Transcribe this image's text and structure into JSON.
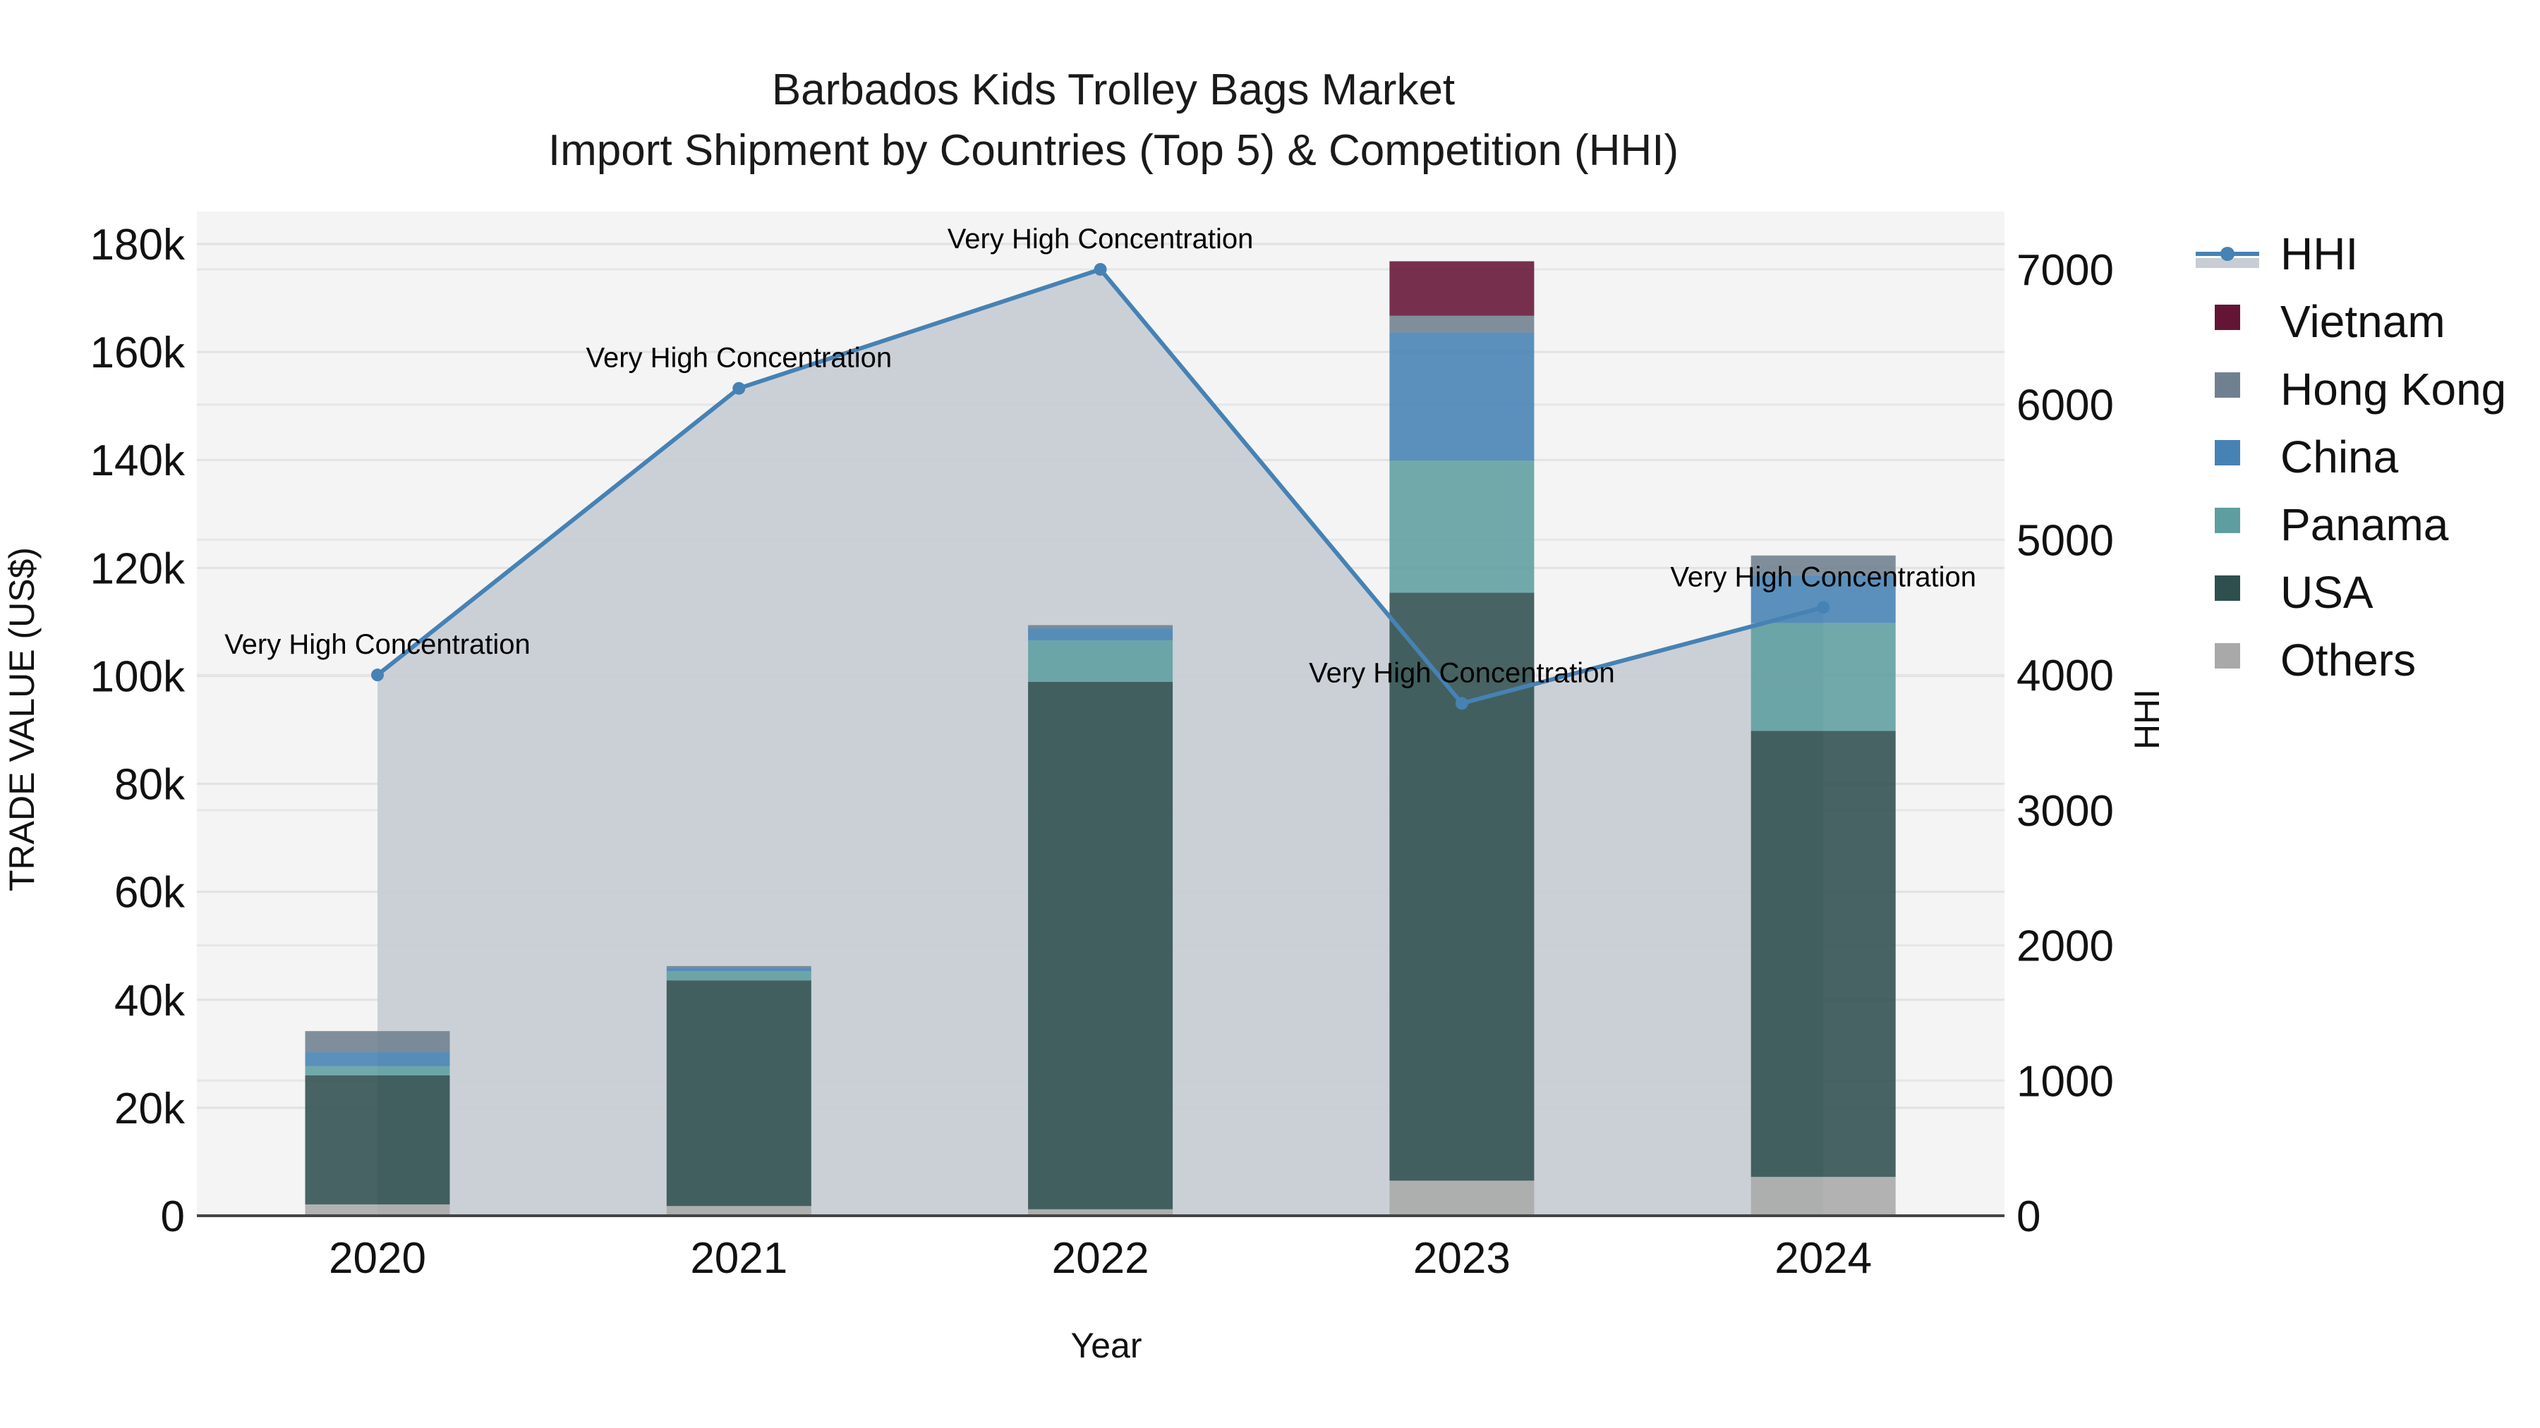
{
  "title": {
    "line1": "Barbados Kids Trolley Bags Market",
    "line2": "Import Shipment by Countries (Top 5) & Competition (HHI)"
  },
  "axes": {
    "x_title": "Year",
    "y_left_title": "TRADE VALUE (US$)",
    "y_right_title": "HHI",
    "y_left_ticks": [
      "0",
      "20k",
      "40k",
      "60k",
      "80k",
      "100k",
      "120k",
      "140k",
      "160k",
      "180k"
    ],
    "y_right_ticks": [
      "0",
      "1000",
      "2000",
      "3000",
      "4000",
      "5000",
      "6000",
      "7000"
    ]
  },
  "colors": {
    "Vietnam": "#641535",
    "Hong Kong": "#708090",
    "China": "#4682b4",
    "Panama": "#5f9ea0",
    "USA": "#2f4f4f",
    "Others": "#a9a9a9",
    "HHI_line": "#4682b4",
    "HHI_fill": "#c8cdd5",
    "plot_bg": "#f4f4f4"
  },
  "legend": [
    {
      "label": "HHI",
      "type": "line"
    },
    {
      "label": "Vietnam",
      "type": "box"
    },
    {
      "label": "Hong Kong",
      "type": "box"
    },
    {
      "label": "China",
      "type": "box"
    },
    {
      "label": "Panama",
      "type": "box"
    },
    {
      "label": "USA",
      "type": "box"
    },
    {
      "label": "Others",
      "type": "box"
    }
  ],
  "chart_data": {
    "type": "bar",
    "stacked": true,
    "title": "Barbados Kids Trolley Bags Market — Import Shipment by Countries (Top 5) & Competition (HHI)",
    "xlabel": "Year",
    "ylabel": "TRADE VALUE (US$)",
    "y2label": "HHI",
    "categories": [
      "2020",
      "2021",
      "2022",
      "2023",
      "2024"
    ],
    "ylim": [
      0,
      186000
    ],
    "y2lim": [
      0,
      7440
    ],
    "grid": true,
    "legend_position": "right",
    "series": [
      {
        "name": "Others",
        "values": [
          2100,
          1800,
          1200,
          6500,
          7200
        ]
      },
      {
        "name": "USA",
        "values": [
          23900,
          41800,
          97700,
          108900,
          82600
        ]
      },
      {
        "name": "Panama",
        "values": [
          1700,
          1700,
          7700,
          24500,
          20000
        ]
      },
      {
        "name": "China",
        "values": [
          2600,
          600,
          2200,
          23700,
          8900
        ]
      },
      {
        "name": "Hong Kong",
        "values": [
          3900,
          350,
          600,
          3100,
          3600
        ]
      },
      {
        "name": "Vietnam",
        "values": [
          0,
          0,
          0,
          10100,
          0
        ]
      }
    ],
    "line_series": {
      "name": "HHI",
      "axis": "right",
      "type": "line+area",
      "values": [
        4000,
        6120,
        7000,
        3790,
        4500
      ],
      "annotations": [
        "Very High Concentration",
        "Very High Concentration",
        "Very High Concentration",
        "Very High Concentration",
        "Very High Concentration"
      ]
    }
  }
}
